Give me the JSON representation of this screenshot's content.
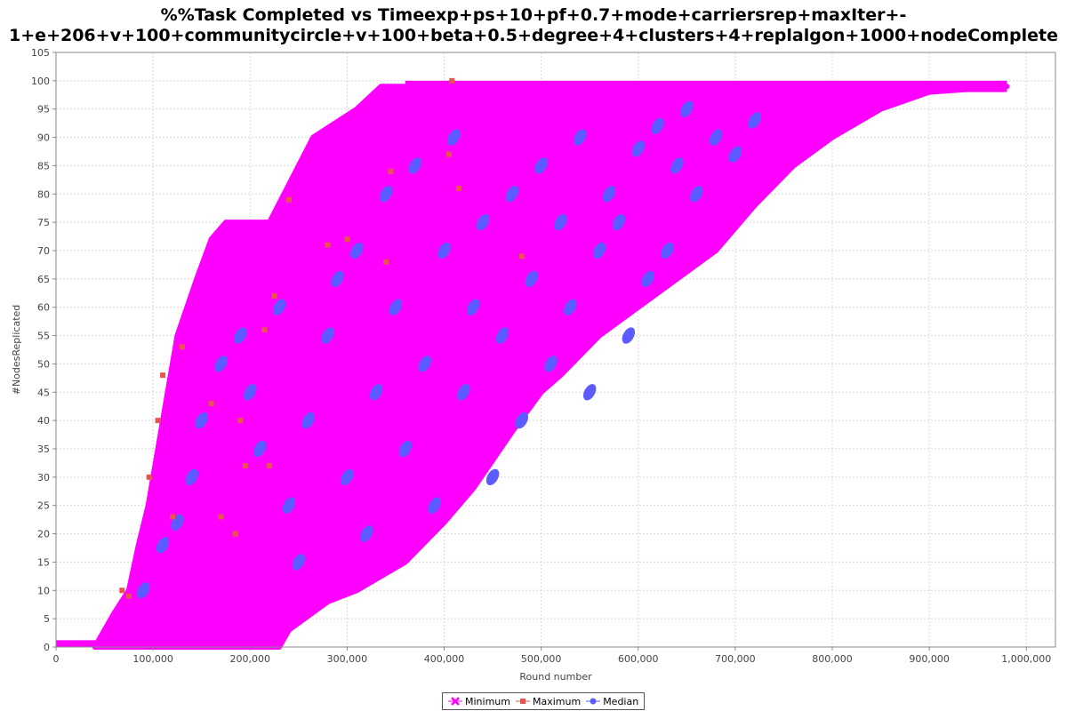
{
  "chart_data": {
    "type": "scatter",
    "title_line1": "%%Task Completed vs Timeexp+ps+10+pf+0.7+mode+carriersrep+maxIter+-",
    "title_line2": "1+e+206+v+100+communitycircle+v+100+beta+0.5+degree+4+clusters+4+replalgon+1000+nodeComplete",
    "xlabel": "Round number",
    "ylabel": "#NodesReplicated",
    "xlim": [
      0,
      1030000
    ],
    "ylim": [
      0,
      105
    ],
    "x_ticks": [
      0,
      100000,
      200000,
      300000,
      400000,
      500000,
      600000,
      700000,
      800000,
      900000,
      1000000
    ],
    "x_tick_labels": [
      "0",
      "100,000",
      "200,000",
      "300,000",
      "400,000",
      "500,000",
      "600,000",
      "700,000",
      "800,000",
      "900,000",
      "1,000,000"
    ],
    "y_ticks": [
      0,
      5,
      10,
      15,
      20,
      25,
      30,
      35,
      40,
      45,
      50,
      55,
      60,
      65,
      70,
      75,
      80,
      85,
      90,
      95,
      100,
      105
    ],
    "grid": true,
    "legend_position": "bottom-center",
    "series": [
      {
        "name": "Minimum",
        "color": "#ff00ff",
        "marker": "x",
        "envelope_left": [
          [
            40000,
            0
          ],
          [
            50000,
            3
          ],
          [
            60000,
            6
          ],
          [
            75000,
            10
          ],
          [
            85000,
            18
          ],
          [
            95000,
            25
          ],
          [
            105000,
            35
          ],
          [
            115000,
            45
          ],
          [
            125000,
            55
          ],
          [
            135000,
            60
          ],
          [
            145000,
            65
          ],
          [
            160000,
            72
          ],
          [
            175000,
            75
          ],
          [
            220000,
            75
          ],
          [
            235000,
            80
          ],
          [
            265000,
            90
          ],
          [
            310000,
            95
          ],
          [
            335000,
            99
          ],
          [
            360000,
            99
          ],
          [
            830000,
            99
          ],
          [
            980000,
            99
          ]
        ],
        "envelope_right": [
          [
            40000,
            0
          ],
          [
            230000,
            0
          ],
          [
            240000,
            3
          ],
          [
            280000,
            8
          ],
          [
            310000,
            10
          ],
          [
            360000,
            15
          ],
          [
            400000,
            22
          ],
          [
            430000,
            28
          ],
          [
            450000,
            33
          ],
          [
            470000,
            38
          ],
          [
            500000,
            45
          ],
          [
            520000,
            48
          ],
          [
            560000,
            55
          ],
          [
            600000,
            60
          ],
          [
            640000,
            65
          ],
          [
            680000,
            70
          ],
          [
            720000,
            78
          ],
          [
            760000,
            85
          ],
          [
            800000,
            90
          ],
          [
            850000,
            95
          ],
          [
            900000,
            98
          ],
          [
            980000,
            99
          ]
        ]
      },
      {
        "name": "Maximum",
        "color": "#e8554e",
        "marker": "square",
        "points": [
          [
            68000,
            10
          ],
          [
            75000,
            9
          ],
          [
            96000,
            30
          ],
          [
            105000,
            40
          ],
          [
            110000,
            48
          ],
          [
            120000,
            23
          ],
          [
            130000,
            53
          ],
          [
            160000,
            43
          ],
          [
            170000,
            23
          ],
          [
            185000,
            20
          ],
          [
            190000,
            40
          ],
          [
            195000,
            32
          ],
          [
            215000,
            56
          ],
          [
            220000,
            32
          ],
          [
            225000,
            62
          ],
          [
            240000,
            79
          ],
          [
            280000,
            71
          ],
          [
            300000,
            72
          ],
          [
            340000,
            68
          ],
          [
            345000,
            84
          ],
          [
            405000,
            87
          ],
          [
            408000,
            100
          ],
          [
            415000,
            81
          ],
          [
            480000,
            69
          ]
        ]
      },
      {
        "name": "Median",
        "color": "#5b5bff",
        "marker": "circle",
        "points": [
          [
            90000,
            10
          ],
          [
            110000,
            18
          ],
          [
            125000,
            22
          ],
          [
            140000,
            30
          ],
          [
            150000,
            40
          ],
          [
            170000,
            50
          ],
          [
            190000,
            55
          ],
          [
            200000,
            45
          ],
          [
            210000,
            35
          ],
          [
            230000,
            60
          ],
          [
            240000,
            25
          ],
          [
            250000,
            15
          ],
          [
            260000,
            40
          ],
          [
            280000,
            55
          ],
          [
            290000,
            65
          ],
          [
            300000,
            30
          ],
          [
            310000,
            70
          ],
          [
            320000,
            20
          ],
          [
            330000,
            45
          ],
          [
            340000,
            80
          ],
          [
            350000,
            60
          ],
          [
            360000,
            35
          ],
          [
            370000,
            85
          ],
          [
            380000,
            50
          ],
          [
            390000,
            25
          ],
          [
            400000,
            70
          ],
          [
            410000,
            90
          ],
          [
            420000,
            45
          ],
          [
            430000,
            60
          ],
          [
            440000,
            75
          ],
          [
            450000,
            30
          ],
          [
            460000,
            55
          ],
          [
            470000,
            80
          ],
          [
            480000,
            40
          ],
          [
            490000,
            65
          ],
          [
            500000,
            85
          ],
          [
            510000,
            50
          ],
          [
            520000,
            75
          ],
          [
            530000,
            60
          ],
          [
            540000,
            90
          ],
          [
            550000,
            45
          ],
          [
            560000,
            70
          ],
          [
            570000,
            80
          ],
          [
            580000,
            75
          ],
          [
            590000,
            55
          ],
          [
            600000,
            88
          ],
          [
            610000,
            65
          ],
          [
            620000,
            92
          ],
          [
            630000,
            70
          ],
          [
            640000,
            85
          ],
          [
            650000,
            95
          ],
          [
            660000,
            80
          ],
          [
            680000,
            90
          ],
          [
            700000,
            87
          ],
          [
            720000,
            93
          ]
        ]
      }
    ]
  },
  "legend": {
    "items": [
      {
        "label": "Minimum"
      },
      {
        "label": "Maximum"
      },
      {
        "label": "Median"
      }
    ]
  }
}
